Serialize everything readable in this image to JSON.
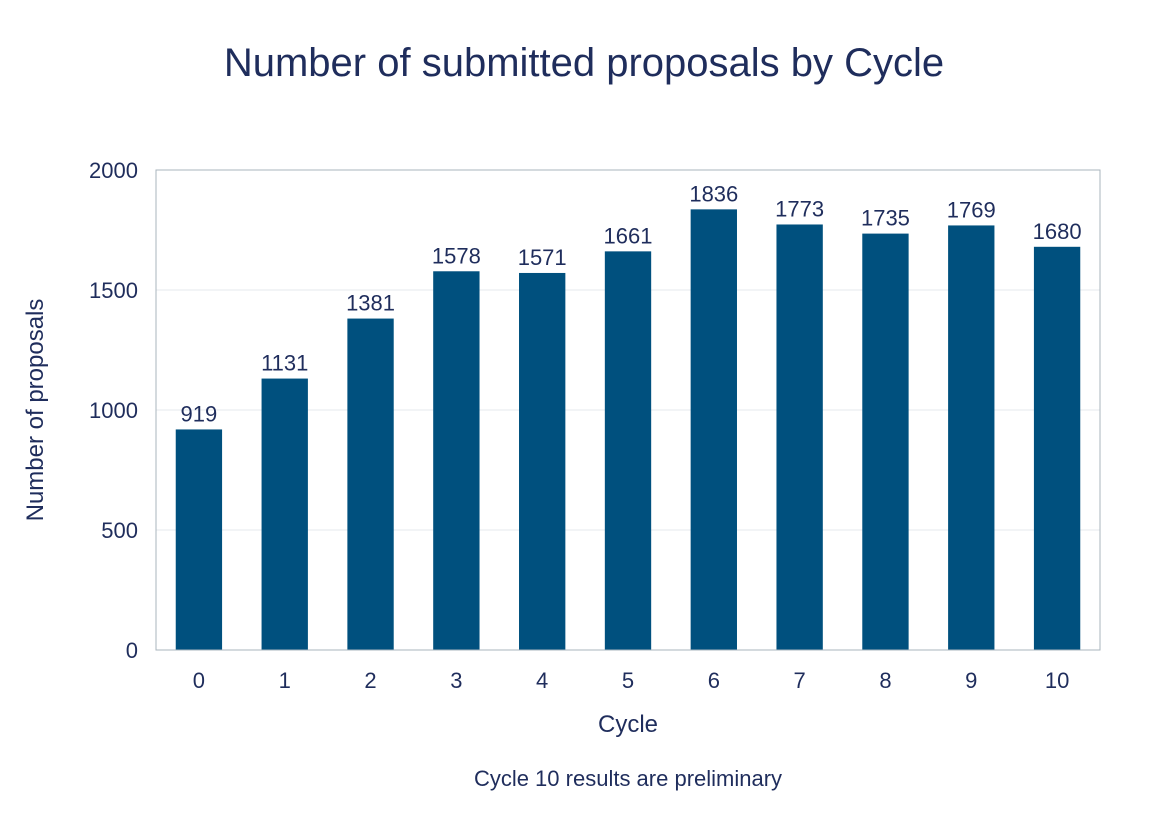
{
  "chart_data": {
    "type": "bar",
    "title": "Number of submitted proposals by Cycle",
    "xlabel": "Cycle",
    "ylabel": "Number of proposals",
    "note": "Cycle 10 results are preliminary",
    "categories": [
      "0",
      "1",
      "2",
      "3",
      "4",
      "5",
      "6",
      "7",
      "8",
      "9",
      "10"
    ],
    "values": [
      919,
      1131,
      1381,
      1578,
      1571,
      1661,
      1836,
      1773,
      1735,
      1769,
      1680
    ],
    "ylim": [
      0,
      2000
    ],
    "yticks": [
      0,
      500,
      1000,
      1500,
      2000
    ],
    "grid": true,
    "legend": "none",
    "colors": {
      "bar": "#00507e",
      "text": "#1f2d5c",
      "axis": "#a9b4bd",
      "grid": "#e6e9ec"
    }
  }
}
